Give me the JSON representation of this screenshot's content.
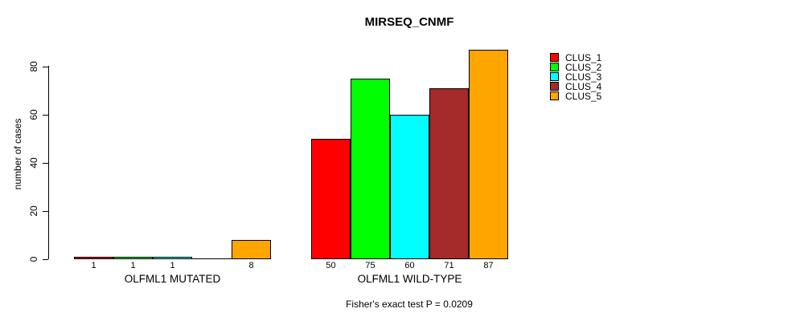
{
  "title": "MIRSEQ_CNMF",
  "footer": "Fisher's exact test P = 0.0209",
  "y_axis": {
    "label": "number of cases",
    "tick_labels": [
      "0",
      "20",
      "40",
      "60",
      "80"
    ]
  },
  "legend": {
    "items": [
      {
        "label": "CLUS_1",
        "color": "#FF0000"
      },
      {
        "label": "CLUS_2",
        "color": "#00FF00"
      },
      {
        "label": "CLUS_3",
        "color": "#00FFFF"
      },
      {
        "label": "CLUS_4",
        "color": "#A52A2A"
      },
      {
        "label": "CLUS_5",
        "color": "#FFA500"
      }
    ]
  },
  "chart_data": {
    "type": "bar",
    "title": "MIRSEQ_CNMF",
    "ylabel": "number of cases",
    "xlabel": "",
    "ylim": [
      0,
      87
    ],
    "y_ticks": [
      0,
      20,
      40,
      60,
      80
    ],
    "grid": false,
    "legend_position": "right",
    "categories": [
      "OLFML1 MUTATED",
      "OLFML1 WILD-TYPE"
    ],
    "series": [
      {
        "name": "CLUS_1",
        "color": "#FF0000",
        "values": [
          1,
          50
        ]
      },
      {
        "name": "CLUS_2",
        "color": "#00FF00",
        "values": [
          1,
          75
        ]
      },
      {
        "name": "CLUS_3",
        "color": "#00FFFF",
        "values": [
          1,
          60
        ]
      },
      {
        "name": "CLUS_4",
        "color": "#A52A2A",
        "values": [
          0,
          71
        ]
      },
      {
        "name": "CLUS_5",
        "color": "#FFA500",
        "values": [
          8,
          87
        ]
      }
    ],
    "bar_value_labels": [
      [
        "1",
        "1",
        "1",
        "",
        "8"
      ],
      [
        "50",
        "75",
        "60",
        "71",
        "87"
      ]
    ],
    "annotation": "Fisher's exact test P = 0.0209"
  }
}
